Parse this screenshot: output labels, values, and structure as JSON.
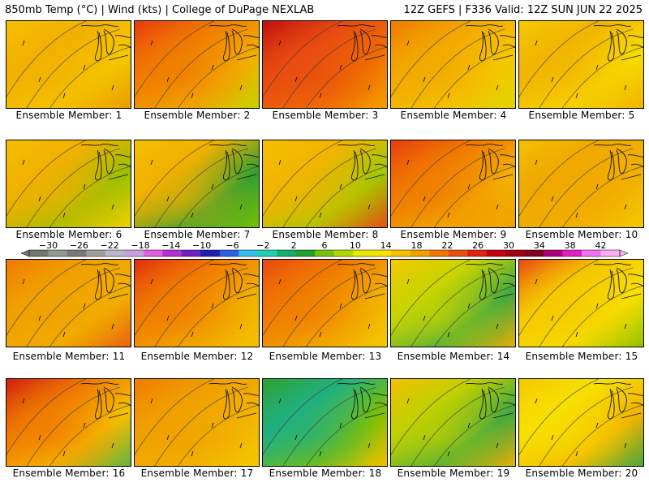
{
  "header": {
    "left": "850mb Temp (°C) | Wind (kts) | College of DuPage NEXLAB",
    "right": "12Z GEFS | F336 Valid: 12Z SUN JUN 22 2025"
  },
  "panels": [
    {
      "label": "Ensemble Member: 1",
      "colors": [
        "#f5c000",
        "#f2b000",
        "#f5c800",
        "#e89a00"
      ]
    },
    {
      "label": "Ensemble Member: 2",
      "colors": [
        "#e83c10",
        "#f07a00",
        "#f2b000",
        "#c8d000"
      ]
    },
    {
      "label": "Ensemble Member: 3",
      "colors": [
        "#c01010",
        "#e84a10",
        "#f07000",
        "#f5a000"
      ]
    },
    {
      "label": "Ensemble Member: 4",
      "colors": [
        "#f07a00",
        "#f2a800",
        "#f5c800",
        "#e0d400"
      ]
    },
    {
      "label": "Ensemble Member: 5",
      "colors": [
        "#f5c800",
        "#f2b400",
        "#f7dc00",
        "#f0b000"
      ]
    },
    {
      "label": "Ensemble Member: 6",
      "colors": [
        "#f5c000",
        "#f2b000",
        "#98c000",
        "#f7d000"
      ]
    },
    {
      "label": "Ensemble Member: 7",
      "colors": [
        "#f5c000",
        "#f0b000",
        "#30a030",
        "#80c000"
      ]
    },
    {
      "label": "Ensemble Member: 8",
      "colors": [
        "#f5c000",
        "#f2b400",
        "#a0c800",
        "#e84a10"
      ]
    },
    {
      "label": "Ensemble Member: 9",
      "colors": [
        "#e83c10",
        "#f07a00",
        "#f2b000",
        "#f0a000"
      ]
    },
    {
      "label": "Ensemble Member: 10",
      "colors": [
        "#f5c000",
        "#f0a800",
        "#f2b000",
        "#f5c800"
      ]
    },
    {
      "label": "Ensemble Member: 11",
      "colors": [
        "#f07a00",
        "#f0a000",
        "#f2b000",
        "#e86010"
      ]
    },
    {
      "label": "Ensemble Member: 12",
      "colors": [
        "#e03010",
        "#f07a00",
        "#f2b000",
        "#f5c000"
      ]
    },
    {
      "label": "Ensemble Member: 13",
      "colors": [
        "#e84a10",
        "#f07a00",
        "#f2b000",
        "#f5c800"
      ]
    },
    {
      "label": "Ensemble Member: 14",
      "colors": [
        "#f5c800",
        "#c8d400",
        "#40a840",
        "#f0b000"
      ]
    },
    {
      "label": "Ensemble Member: 15",
      "colors": [
        "#e84a10",
        "#f5c800",
        "#f7e000",
        "#90c000"
      ]
    },
    {
      "label": "Ensemble Member: 16",
      "colors": [
        "#d02010",
        "#f07a00",
        "#f5c000",
        "#60b040"
      ]
    },
    {
      "label": "Ensemble Member: 17",
      "colors": [
        "#f07a00",
        "#f0a000",
        "#f2b400",
        "#f5c800"
      ]
    },
    {
      "label": "Ensemble Member: 18",
      "colors": [
        "#30a030",
        "#20b080",
        "#80c000",
        "#f5c000"
      ]
    },
    {
      "label": "Ensemble Member: 19",
      "colors": [
        "#f5c000",
        "#c0d000",
        "#40a840",
        "#f2b000"
      ]
    },
    {
      "label": "Ensemble Member: 20",
      "colors": [
        "#f5c800",
        "#f7e000",
        "#f2b400",
        "#40a840"
      ]
    }
  ],
  "colorbar": {
    "ticks": [
      "−30",
      "−26",
      "−22",
      "−18",
      "−14",
      "−10",
      "−6",
      "−2",
      "2",
      "6",
      "10",
      "14",
      "18",
      "22",
      "26",
      "30",
      "34",
      "38",
      "42"
    ],
    "colors": [
      "#707870",
      "#909890",
      "#7a7a7a",
      "#a0a0a0",
      "#b8b8c8",
      "#c8a0e0",
      "#e060e0",
      "#b030d0",
      "#7020c0",
      "#2020b0",
      "#3060e0",
      "#30c0f0",
      "#20d0b0",
      "#10b070",
      "#20a030",
      "#78c010",
      "#b0d800",
      "#e8e800",
      "#f8e000",
      "#f5c000",
      "#f2a000",
      "#f07800",
      "#e85010",
      "#e02010",
      "#c80010",
      "#a00010",
      "#800020",
      "#b00080",
      "#e020c0",
      "#f070f0",
      "#f8b0f0"
    ]
  }
}
